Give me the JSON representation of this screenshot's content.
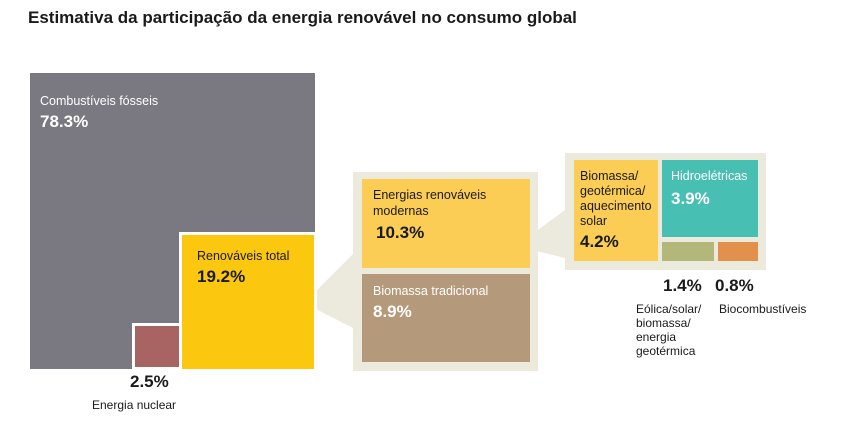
{
  "chart_data": {
    "type": "treemap",
    "title": "Estimativa da participação da energia renovável no consumo global",
    "items": [
      {
        "label": "Combustíveis fósseis",
        "value": 78.3,
        "value_text": "78.3%",
        "color": "#7a7880"
      },
      {
        "label": "Energia nuclear",
        "value": 2.5,
        "value_text": "2.5%",
        "color": "#a86462"
      },
      {
        "label": "Renováveis total",
        "value": 19.2,
        "value_text": "19.2%",
        "color": "#fcc80f",
        "children": [
          {
            "label": "Energias renováveis modernas",
            "label_lines": [
              "Energias renováveis",
              "modernas"
            ],
            "value": 10.3,
            "value_text": "10.3%",
            "color": "#fbcd55",
            "children": [
              {
                "label": "Biomassa/geotérmica/aquecimento solar",
                "label_lines": [
                  "Biomassa/",
                  "geotérmica/",
                  "aquecimento",
                  "solar"
                ],
                "value": 4.2,
                "value_text": "4.2%",
                "color": "#fbcd55"
              },
              {
                "label": "Hidroelétricas",
                "value": 3.9,
                "value_text": "3.9%",
                "color": "#48bfb3"
              },
              {
                "label": "Eólica/solar/biomassa/energia geotérmica",
                "label_lines": [
                  "Eólica/solar/",
                  "biomassa/",
                  "energia",
                  "geotérmica"
                ],
                "value": 1.4,
                "value_text": "1.4%",
                "color": "#b3b77a"
              },
              {
                "label": "Biocombustíveis",
                "value": 0.8,
                "value_text": "0.8%",
                "color": "#e3904c"
              }
            ]
          },
          {
            "label": "Biomassa tradicional",
            "value": 8.9,
            "value_text": "8.9%",
            "color": "#b49a7a"
          }
        ]
      }
    ]
  }
}
